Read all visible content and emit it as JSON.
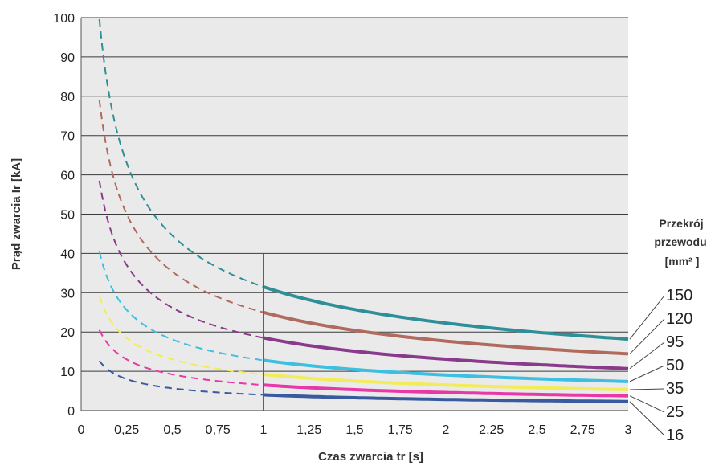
{
  "chart_data": {
    "type": "line",
    "xlabel": "Czas zwarcia tr [s]",
    "ylabel": "Prąd zwarcia Ir [kA]",
    "xlim": [
      0,
      3
    ],
    "ylim": [
      0,
      100
    ],
    "x_ticks": [
      "0",
      "0,25",
      "0,5",
      "0,75",
      "1",
      "1,25",
      "1,5",
      "1,75",
      "2",
      "2,25",
      "2,5",
      "2,75",
      "3"
    ],
    "y_ticks": [
      "0",
      "10",
      "20",
      "30",
      "40",
      "50",
      "60",
      "70",
      "80",
      "90",
      "100"
    ],
    "grid": "horizontal",
    "background": "#eaeaea",
    "marker_line_x": 1,
    "marker_line_color": "#3a5fc8",
    "dashed_range": [
      0.1,
      1
    ],
    "solid_range": [
      1,
      3
    ],
    "legend": {
      "title_lines": [
        "Przekrój",
        "przewodu",
        "[mm² ]"
      ],
      "placement": "right"
    },
    "series": [
      {
        "name": "150",
        "color": "#2f8f98",
        "y_at_1s": 31.5
      },
      {
        "name": "120",
        "color": "#b06a5e",
        "y_at_1s": 25
      },
      {
        "name": "95",
        "color": "#8a3a8c",
        "y_at_1s": 18.5
      },
      {
        "name": "50",
        "color": "#3cbfe0",
        "y_at_1s": 12.8
      },
      {
        "name": "35",
        "color": "#f2ec5a",
        "y_at_1s": 9.2
      },
      {
        "name": "25",
        "color": "#e838a8",
        "y_at_1s": 6.5
      },
      {
        "name": "16",
        "color": "#3a5aa0",
        "y_at_1s": 4.0
      }
    ]
  }
}
